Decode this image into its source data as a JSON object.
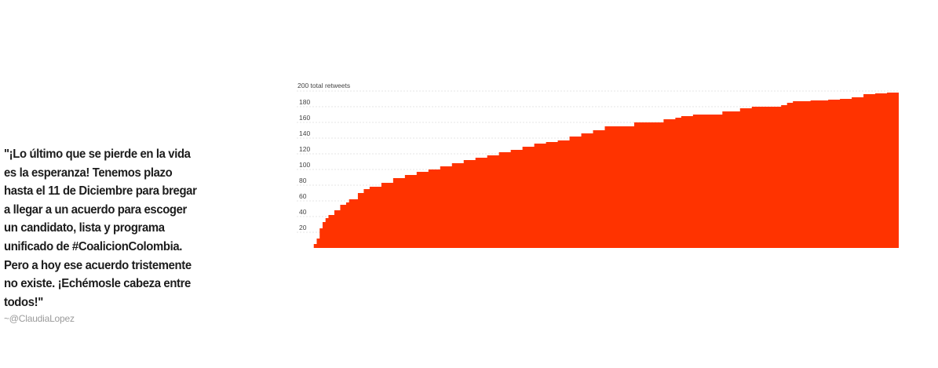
{
  "quote": {
    "text": "\"¡Lo último que se pierde en la vida es la esperanza! Tenemos plazo hasta el 11 de Diciembre para bregar a llegar a un acuerdo para escoger un candidato, lista y programa unificado de #CoalicionColombia. Pero a hoy ese acuerdo tristemente no existe. ¡Echémosle cabeza entre todos!\"",
    "author": "~@ClaudiaLopez"
  },
  "colors": {
    "fill": "#ff3300",
    "grid": "#dcdcdc",
    "text": "#1c1c1c",
    "author": "#9a9a9a"
  },
  "chart_data": {
    "type": "area",
    "title": "",
    "xlabel": "",
    "ylabel": "",
    "y_top_label": "200 total retweets",
    "yticks": [
      20,
      40,
      60,
      80,
      100,
      120,
      140,
      160,
      180
    ],
    "ylim": [
      0,
      200
    ],
    "xlim": [
      0,
      1
    ],
    "grid": true,
    "series": [
      {
        "x": [
          0,
          0.005,
          0.01,
          0.015,
          0.02,
          0.025,
          0.03,
          0.04,
          0.05,
          0.06,
          0.065,
          0.08,
          0.09,
          0.1,
          0.12,
          0.14,
          0.16,
          0.18,
          0.2,
          0.22,
          0.24,
          0.26,
          0.28,
          0.3,
          0.32,
          0.34,
          0.36,
          0.38,
          0.4,
          0.42,
          0.44,
          0.46,
          0.48,
          0.5,
          0.55,
          0.6,
          0.62,
          0.63,
          0.65,
          0.7,
          0.73,
          0.75,
          0.8,
          0.81,
          0.82,
          0.85,
          0.88,
          0.9,
          0.92,
          0.94,
          0.96,
          0.98,
          1
        ],
        "y": [
          0,
          5,
          12,
          25,
          33,
          38,
          42,
          48,
          55,
          58,
          62,
          70,
          75,
          78,
          83,
          89,
          93,
          97,
          100,
          104,
          108,
          112,
          115,
          118,
          122,
          125,
          129,
          133,
          135,
          137,
          142,
          146,
          150,
          155,
          160,
          164,
          166,
          168,
          170,
          174,
          178,
          180,
          182,
          185,
          187,
          188,
          189,
          190,
          192,
          196,
          197,
          198,
          199
        ]
      }
    ]
  }
}
